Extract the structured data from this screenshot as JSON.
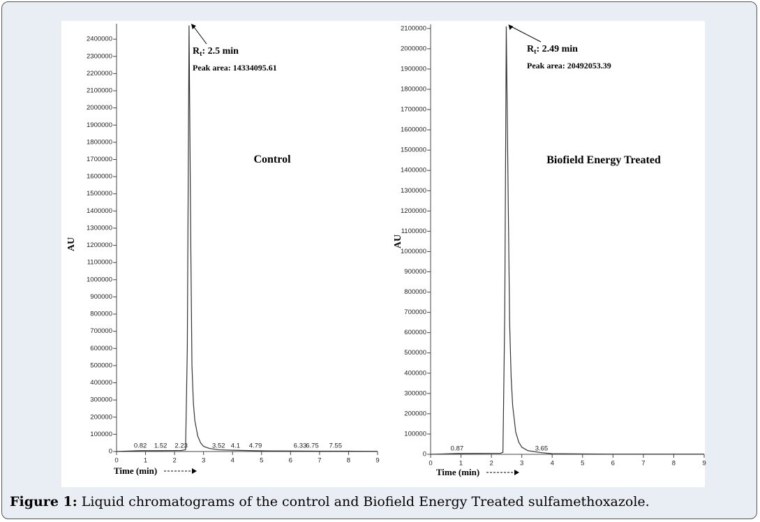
{
  "chart_data": [
    {
      "type": "line",
      "label": "Control",
      "ylabel": "AU",
      "xlabel": "Time (min)",
      "rt": {
        "symbol": "R",
        "subscript": "t",
        "text": ": 2.5 min"
      },
      "peak_area": "Peak area: 14334095.61",
      "peaks": [
        0.82,
        1.52,
        2.23,
        3.52,
        4.1,
        4.79,
        6.33,
        6.75,
        7.55
      ],
      "x": [
        0,
        0.82,
        1.52,
        2.23,
        2.38,
        2.44,
        2.5,
        2.56,
        2.6,
        2.65,
        2.7,
        2.8,
        2.9,
        3.0,
        3.2,
        3.52,
        4.1,
        5,
        6,
        7,
        8,
        9
      ],
      "values": [
        0,
        5000,
        5000,
        6000,
        10000,
        600000,
        2480000,
        1200000,
        500000,
        280000,
        180000,
        90000,
        50000,
        30000,
        18000,
        10000,
        7000,
        4000,
        3000,
        2000,
        2000,
        1000
      ],
      "color": "#333333",
      "xlim": [
        0,
        9
      ],
      "xticks": [
        0,
        1,
        2,
        3,
        4,
        5,
        6,
        7,
        8,
        9
      ],
      "ylim": [
        0,
        2490000
      ],
      "yticks": [
        0,
        100000,
        200000,
        300000,
        400000,
        500000,
        600000,
        700000,
        800000,
        900000,
        1000000,
        1100000,
        1200000,
        1300000,
        1400000,
        1500000,
        1600000,
        1700000,
        1800000,
        1900000,
        2000000,
        2100000,
        2200000,
        2300000,
        2400000
      ]
    },
    {
      "type": "line",
      "label": "Biofield Energy Treated",
      "ylabel": "AU",
      "xlabel": "Time (min)",
      "rt": {
        "symbol": "R",
        "subscript": "t",
        "text": ": 2.49 min"
      },
      "peak_area": "Peak area: 20492053.39",
      "peaks": [
        0.87,
        3.65
      ],
      "x": [
        0,
        0.87,
        2.3,
        2.38,
        2.44,
        2.49,
        2.55,
        2.6,
        2.65,
        2.7,
        2.8,
        2.9,
        3.0,
        3.2,
        3.65,
        4,
        5,
        6,
        7,
        8,
        9
      ],
      "values": [
        0,
        4000,
        5000,
        10000,
        700000,
        2110000,
        1300000,
        650000,
        380000,
        240000,
        110000,
        60000,
        35000,
        18000,
        8000,
        3000,
        2000,
        1000,
        1000,
        1000,
        1000
      ],
      "color": "#333333",
      "xlim": [
        0,
        9
      ],
      "xticks": [
        0,
        1,
        2,
        3,
        4,
        5,
        6,
        7,
        8,
        9
      ],
      "ylim": [
        0,
        2120000
      ],
      "yticks": [
        0,
        100000,
        200000,
        300000,
        400000,
        500000,
        600000,
        700000,
        800000,
        900000,
        1000000,
        1100000,
        1200000,
        1300000,
        1400000,
        1500000,
        1600000,
        1700000,
        1800000,
        1900000,
        2000000,
        2100000
      ]
    }
  ],
  "caption": {
    "label": "Figure 1:",
    "text": " Liquid chromatograms of the control and Biofield Energy Treated sulfamethoxazole."
  }
}
